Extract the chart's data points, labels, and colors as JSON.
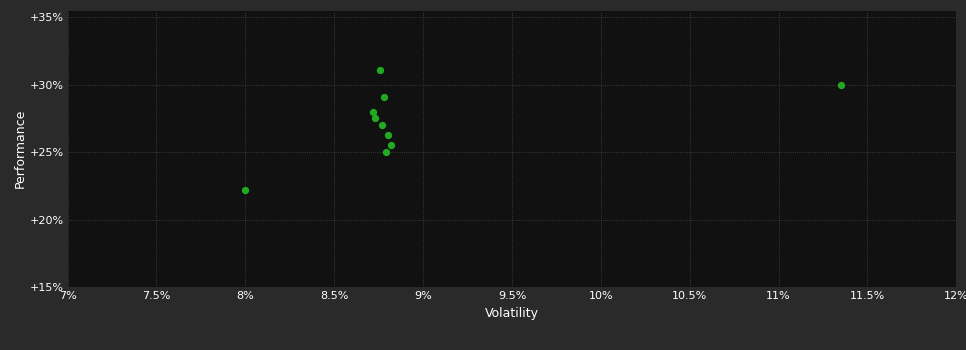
{
  "outer_bg_color": "#2a2a2a",
  "plot_bg_color": "#111111",
  "grid_color": "#555555",
  "text_color": "#ffffff",
  "dot_color": "#22aa22",
  "xlabel": "Volatility",
  "ylabel": "Performance",
  "xlim": [
    0.07,
    0.12
  ],
  "ylim": [
    0.15,
    0.355
  ],
  "xticks": [
    0.07,
    0.075,
    0.08,
    0.085,
    0.09,
    0.095,
    0.1,
    0.105,
    0.11,
    0.115,
    0.12
  ],
  "yticks": [
    0.15,
    0.2,
    0.25,
    0.3,
    0.35
  ],
  "xtick_labels": [
    "7%",
    "7.5%",
    "8%",
    "8.5%",
    "9%",
    "9.5%",
    "10%",
    "10.5%",
    "11%",
    "11.5%",
    "12%"
  ],
  "ytick_labels": [
    "+15%",
    "+20%",
    "+25%",
    "+30%",
    "+35%"
  ],
  "points": [
    [
      0.08,
      0.222
    ],
    [
      0.0876,
      0.311
    ],
    [
      0.0878,
      0.291
    ],
    [
      0.0872,
      0.28
    ],
    [
      0.0873,
      0.275
    ],
    [
      0.0877,
      0.27
    ],
    [
      0.088,
      0.263
    ],
    [
      0.0882,
      0.255
    ],
    [
      0.0879,
      0.25
    ],
    [
      0.1135,
      0.3
    ]
  ],
  "dot_size": 18,
  "axis_label_fontsize": 9,
  "tick_fontsize": 8
}
